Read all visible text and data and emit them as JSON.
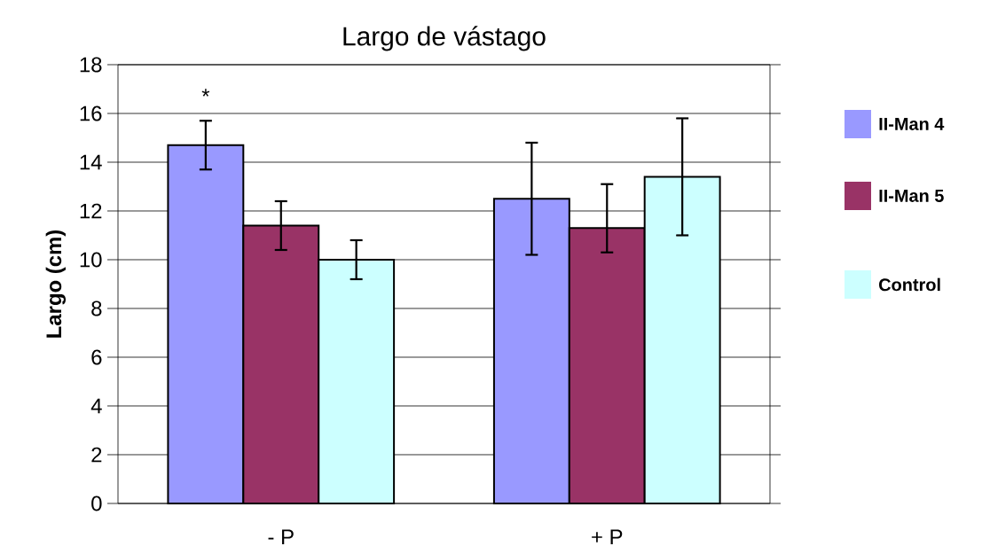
{
  "chart_data": {
    "type": "bar",
    "title": "Largo de vástago",
    "ylabel": "Largo (cm)",
    "categories": [
      "- P",
      "+ P"
    ],
    "series": [
      {
        "name": "II-Man 4",
        "color": "#9999ff",
        "values": [
          14.7,
          12.5
        ],
        "errors": [
          [
            13.7,
            15.7
          ],
          [
            10.2,
            14.8
          ]
        ]
      },
      {
        "name": "II-Man 5",
        "color": "#993366",
        "values": [
          11.4,
          11.3
        ],
        "errors": [
          [
            10.4,
            12.4
          ],
          [
            10.3,
            13.1
          ]
        ]
      },
      {
        "name": "Control",
        "color": "#ccffff",
        "values": [
          10.0,
          13.4
        ],
        "errors": [
          [
            9.2,
            10.8
          ],
          [
            11.0,
            15.8
          ]
        ]
      }
    ],
    "ylim": [
      0,
      18
    ],
    "yticks": [
      0,
      2,
      4,
      6,
      8,
      10,
      12,
      14,
      16,
      18
    ],
    "grid": "y",
    "legend": "right",
    "annotations": [
      "*"
    ]
  }
}
